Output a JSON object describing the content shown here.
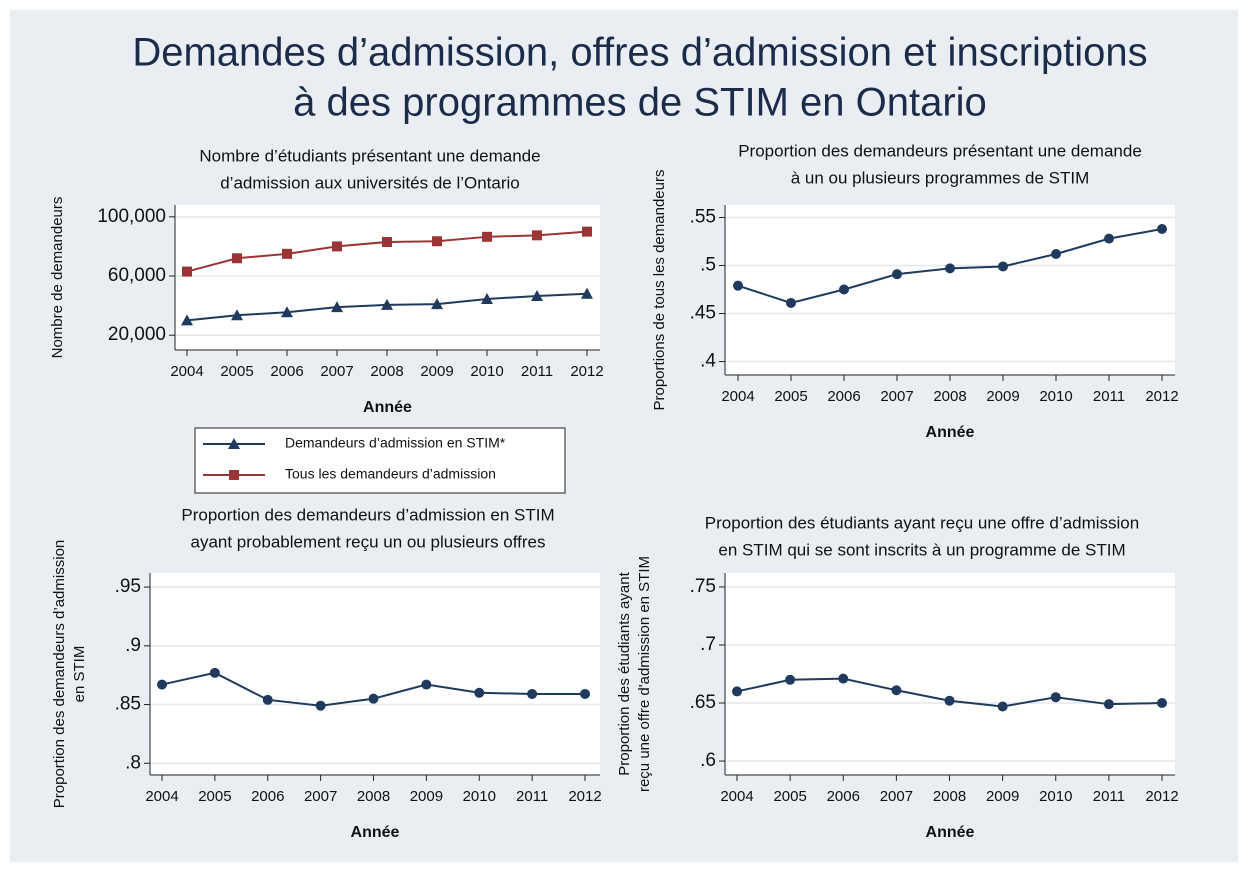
{
  "title": [
    "Demandes d’admission, offres d’admission et inscriptions",
    "à des programmes de STIM en Ontario"
  ],
  "chart_data": [
    {
      "type": "line",
      "title": [
        "Nombre d’étudiants présentant une demande",
        "d’admission aux universités de l’Ontario"
      ],
      "ylabel": [
        "Nombre de demandeurs"
      ],
      "xlabel": "Année",
      "categories": [
        "2004",
        "2005",
        "2006",
        "2007",
        "2008",
        "2009",
        "2010",
        "2011",
        "2012"
      ],
      "series": [
        {
          "name": "Demandeurs d’admission en STIM*",
          "color": "#1f3a5c",
          "marker": "triangle",
          "values": [
            30000,
            33500,
            35500,
            39000,
            40500,
            41000,
            44500,
            46500,
            48000
          ]
        },
        {
          "name": "Tous les demandeurs d’admission",
          "color": "#9b3535",
          "marker": "square",
          "values": [
            63000,
            72000,
            75000,
            80000,
            83000,
            83500,
            86500,
            87500,
            90000
          ]
        }
      ],
      "ylim": [
        10000,
        108000
      ],
      "yticks": [
        {
          "value": 20000,
          "label": "20,000"
        },
        {
          "value": 60000,
          "label": "60,000"
        },
        {
          "value": 100000,
          "label": "100,000"
        }
      ],
      "grid": true
    },
    {
      "type": "line",
      "title": [
        "Proportion des demandeurs présentant une demande",
        "à un ou plusieurs programmes de STIM"
      ],
      "ylabel": [
        "Proportions de tous les demandeurs"
      ],
      "xlabel": "Année",
      "categories": [
        "2004",
        "2005",
        "2006",
        "2007",
        "2008",
        "2009",
        "2010",
        "2011",
        "2012"
      ],
      "values": [
        0.479,
        0.461,
        0.475,
        0.491,
        0.497,
        0.499,
        0.512,
        0.528,
        0.538
      ],
      "color": "#1f3a5c",
      "ylim": [
        0.386,
        0.563
      ],
      "yticks": [
        {
          "value": 0.4,
          "label": ".4"
        },
        {
          "value": 0.45,
          "label": ".45"
        },
        {
          "value": 0.5,
          "label": ".5"
        },
        {
          "value": 0.55,
          "label": ".55"
        }
      ],
      "grid": true
    },
    {
      "type": "line",
      "title": [
        "Proportion des demandeurs d’admission en STIM",
        "ayant probablement reçu un ou plusieurs offres"
      ],
      "ylabel": [
        "Proportion des demandeurs d’admission",
        "en STIM"
      ],
      "xlabel": "Année",
      "categories": [
        "2004",
        "2005",
        "2006",
        "2007",
        "2008",
        "2009",
        "2010",
        "2011",
        "2012"
      ],
      "values": [
        0.867,
        0.877,
        0.854,
        0.849,
        0.855,
        0.867,
        0.86,
        0.859,
        0.859
      ],
      "color": "#1f3a5c",
      "ylim": [
        0.79,
        0.962
      ],
      "yticks": [
        {
          "value": 0.8,
          "label": ".8"
        },
        {
          "value": 0.85,
          "label": ".85"
        },
        {
          "value": 0.9,
          "label": ".9"
        },
        {
          "value": 0.95,
          "label": ".95"
        }
      ],
      "grid": true
    },
    {
      "type": "line",
      "title": [
        "Proportion des étudiants ayant reçu une offre d’admission",
        "en STIM qui se sont inscrits à un programme de STIM"
      ],
      "ylabel": [
        "Proportion des étudiants ayant",
        "reçu une offre d'admission en STIM"
      ],
      "xlabel": "Année",
      "categories": [
        "2004",
        "2005",
        "2006",
        "2007",
        "2008",
        "2009",
        "2010",
        "2011",
        "2012"
      ],
      "values": [
        0.66,
        0.67,
        0.671,
        0.661,
        0.652,
        0.647,
        0.655,
        0.649,
        0.65
      ],
      "color": "#1f3a5c",
      "ylim": [
        0.588,
        0.762
      ],
      "yticks": [
        {
          "value": 0.6,
          "label": ".6"
        },
        {
          "value": 0.65,
          "label": ".65"
        },
        {
          "value": 0.7,
          "label": ".7"
        },
        {
          "value": 0.75,
          "label": ".75"
        }
      ],
      "grid": true
    }
  ]
}
